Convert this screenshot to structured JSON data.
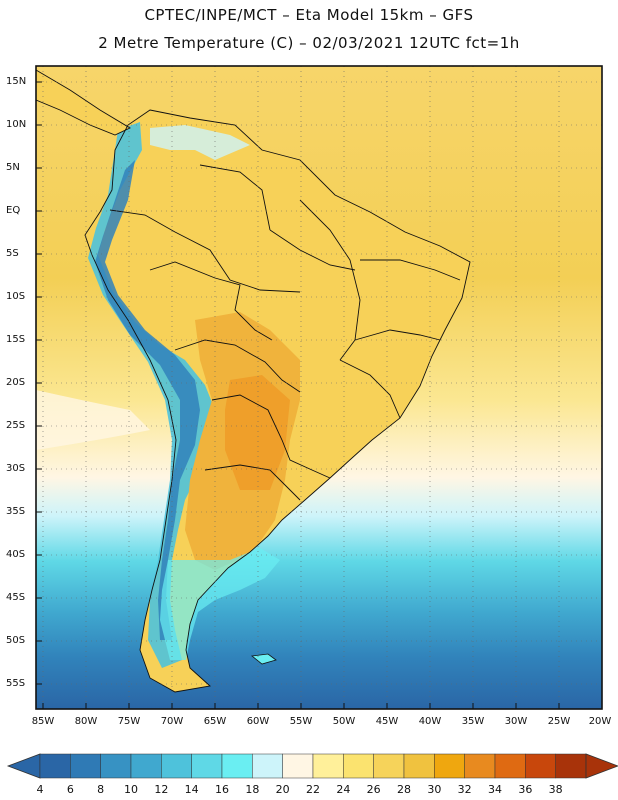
{
  "title": {
    "line1": "CPTEC/INPE/MCT –  Eta Model 15km – GFS",
    "line2": "2 Metre Temperature (C) – 02/03/2021 12UTC fct=1h"
  },
  "map": {
    "lat_labels": [
      "15N",
      "10N",
      "5N",
      "EQ",
      "5S",
      "10S",
      "15S",
      "20S",
      "25S",
      "30S",
      "35S",
      "40S",
      "45S",
      "50S",
      "55S"
    ],
    "lon_labels": [
      "85W",
      "80W",
      "75W",
      "70W",
      "65W",
      "60W",
      "55W",
      "50W",
      "45W",
      "40W",
      "35W",
      "30W",
      "25W",
      "20W"
    ]
  },
  "colorbar": {
    "labels": [
      "4",
      "6",
      "8",
      "10",
      "12",
      "14",
      "16",
      "18",
      "20",
      "22",
      "24",
      "26",
      "28",
      "30",
      "32",
      "34",
      "36",
      "38"
    ],
    "colors": [
      "#2a66a6",
      "#2f7ab5",
      "#3792c3",
      "#40a8cf",
      "#4ec2db",
      "#5fd8e6",
      "#6aeef2",
      "#cdf4fa",
      "#fff6e4",
      "#fff09a",
      "#fbe36f",
      "#f6d35a",
      "#f0c23f",
      "#efa70f",
      "#e88a1f",
      "#df6a12",
      "#c8470c",
      "#a8330a"
    ],
    "low_color": "#2a66a6",
    "high_color": "#a8330a"
  }
}
